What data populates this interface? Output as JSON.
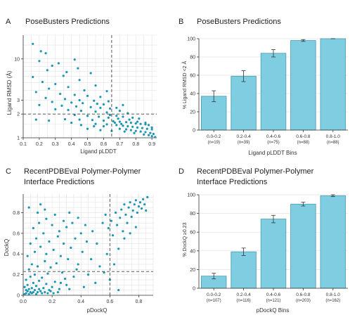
{
  "colors": {
    "marker": "#1b97b3",
    "bar": "#7ecde0",
    "bar_edge": "#4a9bb2",
    "axis": "#333333",
    "grid": "#e3e3e3",
    "guide": "#444444"
  },
  "panels": [
    {
      "letter": "A",
      "title": [
        "PoseBusters Predictions"
      ]
    },
    {
      "letter": "B",
      "title": [
        "PoseBusters Predictions"
      ]
    },
    {
      "letter": "C",
      "title": [
        "RecentPDBEval Polymer-Polymer",
        "Interface Predictions"
      ]
    },
    {
      "letter": "D",
      "title": [
        "RecentPDBEval Polymer-Polymer",
        "Interface Predictions"
      ]
    }
  ],
  "chart_data": [
    {
      "type": "scatter",
      "title": "PoseBusters Predictions",
      "xlabel": "Ligand pLDDT",
      "ylabel": "Ligand RMSD (Å)",
      "xlim": [
        0.1,
        0.93
      ],
      "ylim": [
        1,
        20
      ],
      "yscale": "log",
      "xticks": [
        "0.1",
        "0.2",
        "0.3",
        "0.4",
        "0.5",
        "0.6",
        "0.7",
        "0.8",
        "0.9"
      ],
      "yticks": [
        "1",
        "2",
        "3",
        "10"
      ],
      "grid": true,
      "reference_lines": {
        "x": 0.65,
        "y": 2
      },
      "points": [
        [
          0.16,
          15.5
        ],
        [
          0.21,
          12.5
        ],
        [
          0.24,
          11.8
        ],
        [
          0.42,
          9.8
        ],
        [
          0.2,
          9.4
        ],
        [
          0.32,
          8.8
        ],
        [
          0.28,
          8.2
        ],
        [
          0.44,
          7.6
        ],
        [
          0.25,
          7.2
        ],
        [
          0.37,
          6.8
        ],
        [
          0.52,
          6.6
        ],
        [
          0.35,
          6.1
        ],
        [
          0.16,
          5.9
        ],
        [
          0.45,
          5.4
        ],
        [
          0.22,
          5.1
        ],
        [
          0.3,
          4.8
        ],
        [
          0.55,
          4.6
        ],
        [
          0.38,
          4.4
        ],
        [
          0.26,
          4.2
        ],
        [
          0.48,
          4.0
        ],
        [
          0.62,
          3.9
        ],
        [
          0.18,
          3.8
        ],
        [
          0.33,
          3.6
        ],
        [
          0.42,
          3.5
        ],
        [
          0.5,
          3.4
        ],
        [
          0.58,
          3.3
        ],
        [
          0.24,
          3.2
        ],
        [
          0.36,
          3.1
        ],
        [
          0.45,
          3.0
        ],
        [
          0.54,
          2.95
        ],
        [
          0.63,
          2.9
        ],
        [
          0.28,
          2.85
        ],
        [
          0.4,
          2.8
        ],
        [
          0.47,
          2.75
        ],
        [
          0.56,
          2.7
        ],
        [
          0.6,
          2.65
        ],
        [
          0.2,
          2.6
        ],
        [
          0.34,
          2.55
        ],
        [
          0.43,
          2.5
        ],
        [
          0.52,
          2.45
        ],
        [
          0.58,
          2.4
        ],
        [
          0.64,
          2.35
        ],
        [
          0.3,
          2.3
        ],
        [
          0.38,
          2.25
        ],
        [
          0.46,
          2.2
        ],
        [
          0.55,
          2.15
        ],
        [
          0.62,
          2.1
        ],
        [
          0.72,
          2.6
        ],
        [
          0.68,
          2.4
        ],
        [
          0.7,
          2.2
        ],
        [
          0.75,
          2.05
        ],
        [
          0.42,
          1.95
        ],
        [
          0.5,
          1.9
        ],
        [
          0.57,
          1.85
        ],
        [
          0.63,
          1.8
        ],
        [
          0.68,
          1.9
        ],
        [
          0.72,
          1.85
        ],
        [
          0.78,
          1.8
        ],
        [
          0.82,
          1.75
        ],
        [
          0.36,
          1.72
        ],
        [
          0.45,
          1.7
        ],
        [
          0.53,
          1.68
        ],
        [
          0.6,
          1.65
        ],
        [
          0.66,
          1.62
        ],
        [
          0.7,
          1.6
        ],
        [
          0.74,
          1.58
        ],
        [
          0.77,
          1.55
        ],
        [
          0.8,
          1.52
        ],
        [
          0.83,
          1.5
        ],
        [
          0.86,
          1.48
        ],
        [
          0.88,
          1.45
        ],
        [
          0.55,
          1.5
        ],
        [
          0.62,
          1.48
        ],
        [
          0.68,
          1.45
        ],
        [
          0.72,
          1.42
        ],
        [
          0.75,
          1.4
        ],
        [
          0.78,
          1.38
        ],
        [
          0.81,
          1.35
        ],
        [
          0.84,
          1.33
        ],
        [
          0.87,
          1.3
        ],
        [
          0.9,
          1.28
        ],
        [
          0.7,
          1.3
        ],
        [
          0.74,
          1.28
        ],
        [
          0.77,
          1.25
        ],
        [
          0.8,
          1.22
        ],
        [
          0.83,
          1.2
        ],
        [
          0.86,
          1.18
        ],
        [
          0.89,
          1.15
        ],
        [
          0.91,
          1.12
        ],
        [
          0.73,
          1.2
        ],
        [
          0.79,
          1.15
        ],
        [
          0.85,
          1.1
        ],
        [
          0.88,
          1.08
        ],
        [
          0.9,
          1.05
        ],
        [
          0.18,
          1.7
        ],
        [
          0.26,
          1.65
        ],
        [
          0.5,
          1.3
        ],
        [
          0.58,
          1.25
        ],
        [
          0.65,
          1.22
        ],
        [
          0.46,
          1.45
        ],
        [
          0.54,
          1.4
        ],
        [
          0.4,
          1.55
        ],
        [
          0.92,
          1.02
        ],
        [
          0.76,
          1.7
        ],
        [
          0.69,
          1.75
        ],
        [
          0.64,
          1.95
        ],
        [
          0.81,
          1.6
        ],
        [
          0.86,
          1.55
        ],
        [
          0.9,
          1.35
        ],
        [
          0.71,
          1.5
        ],
        [
          0.67,
          1.55
        ],
        [
          0.6,
          1.4
        ]
      ]
    },
    {
      "type": "bar",
      "title": "PoseBusters Predictions",
      "xlabel": "Ligand pLDDT Bins",
      "ylabel": "% Ligand RMSD <2 Å",
      "categories": [
        "0.0-0.2",
        "0.2-0.4",
        "0.4-0.6",
        "0.6-0.8",
        "0.8-1.0"
      ],
      "counts": [
        "(n=19)",
        "(n=39)",
        "(n=75)",
        "(n=88)",
        "(n=88)"
      ],
      "values": [
        37,
        59,
        84,
        98,
        100
      ],
      "error_low": [
        31,
        53,
        80,
        97,
        100
      ],
      "error_high": [
        43,
        65,
        88,
        99,
        100
      ],
      "ylim": [
        0,
        100
      ],
      "yticks": [
        "0",
        "20",
        "40",
        "60",
        "80",
        "100"
      ],
      "grid": true
    },
    {
      "type": "scatter",
      "title": "RecentPDBEval Polymer-Polymer Interface Predictions",
      "xlabel": "pDockQ",
      "ylabel": "DockQ",
      "xlim": [
        0,
        0.9
      ],
      "ylim": [
        0,
        0.98
      ],
      "xticks": [
        "0.0",
        "0.2",
        "0.4",
        "0.6",
        "0.8"
      ],
      "yticks": [
        "0",
        "0.2",
        "0.4",
        "0.6",
        "0.8"
      ],
      "grid": true,
      "reference_lines": {
        "x": 0.6,
        "y": 0.23
      },
      "points": [
        [
          0.02,
          0.02
        ],
        [
          0.03,
          0.04
        ],
        [
          0.05,
          0.03
        ],
        [
          0.04,
          0.06
        ],
        [
          0.06,
          0.02
        ],
        [
          0.08,
          0.05
        ],
        [
          0.1,
          0.03
        ],
        [
          0.12,
          0.04
        ],
        [
          0.01,
          0.08
        ],
        [
          0.03,
          0.1
        ],
        [
          0.07,
          0.12
        ],
        [
          0.09,
          0.09
        ],
        [
          0.11,
          0.14
        ],
        [
          0.14,
          0.07
        ],
        [
          0.16,
          0.11
        ],
        [
          0.18,
          0.05
        ],
        [
          0.02,
          0.15
        ],
        [
          0.05,
          0.18
        ],
        [
          0.08,
          0.2
        ],
        [
          0.13,
          0.17
        ],
        [
          0.17,
          0.21
        ],
        [
          0.2,
          0.08
        ],
        [
          0.22,
          0.13
        ],
        [
          0.25,
          0.06
        ],
        [
          0.04,
          0.25
        ],
        [
          0.06,
          0.3
        ],
        [
          0.1,
          0.28
        ],
        [
          0.15,
          0.33
        ],
        [
          0.19,
          0.27
        ],
        [
          0.23,
          0.31
        ],
        [
          0.27,
          0.22
        ],
        [
          0.3,
          0.1
        ],
        [
          0.03,
          0.38
        ],
        [
          0.08,
          0.42
        ],
        [
          0.12,
          0.47
        ],
        [
          0.16,
          0.4
        ],
        [
          0.21,
          0.44
        ],
        [
          0.26,
          0.38
        ],
        [
          0.31,
          0.35
        ],
        [
          0.35,
          0.18
        ],
        [
          0.05,
          0.5
        ],
        [
          0.09,
          0.55
        ],
        [
          0.14,
          0.6
        ],
        [
          0.18,
          0.52
        ],
        [
          0.24,
          0.57
        ],
        [
          0.28,
          0.5
        ],
        [
          0.33,
          0.46
        ],
        [
          0.38,
          0.3
        ],
        [
          0.07,
          0.65
        ],
        [
          0.11,
          0.7
        ],
        [
          0.16,
          0.74
        ],
        [
          0.2,
          0.68
        ],
        [
          0.25,
          0.62
        ],
        [
          0.3,
          0.66
        ],
        [
          0.36,
          0.55
        ],
        [
          0.41,
          0.42
        ],
        [
          0.1,
          0.8
        ],
        [
          0.15,
          0.83
        ],
        [
          0.22,
          0.78
        ],
        [
          0.28,
          0.72
        ],
        [
          0.34,
          0.7
        ],
        [
          0.4,
          0.6
        ],
        [
          0.44,
          0.52
        ],
        [
          0.47,
          0.35
        ],
        [
          0.04,
          0.85
        ],
        [
          0.12,
          0.88
        ],
        [
          0.32,
          0.8
        ],
        [
          0.38,
          0.75
        ],
        [
          0.43,
          0.68
        ],
        [
          0.48,
          0.62
        ],
        [
          0.51,
          0.5
        ],
        [
          0.53,
          0.28
        ],
        [
          0.55,
          0.7
        ],
        [
          0.57,
          0.78
        ],
        [
          0.59,
          0.65
        ],
        [
          0.61,
          0.72
        ],
        [
          0.62,
          0.58
        ],
        [
          0.64,
          0.8
        ],
        [
          0.65,
          0.68
        ],
        [
          0.67,
          0.75
        ],
        [
          0.68,
          0.83
        ],
        [
          0.69,
          0.62
        ],
        [
          0.7,
          0.88
        ],
        [
          0.71,
          0.78
        ],
        [
          0.72,
          0.7
        ],
        [
          0.73,
          0.85
        ],
        [
          0.74,
          0.9
        ],
        [
          0.75,
          0.76
        ],
        [
          0.76,
          0.82
        ],
        [
          0.77,
          0.88
        ],
        [
          0.78,
          0.92
        ],
        [
          0.79,
          0.8
        ],
        [
          0.8,
          0.86
        ],
        [
          0.81,
          0.9
        ],
        [
          0.82,
          0.84
        ],
        [
          0.83,
          0.93
        ],
        [
          0.84,
          0.88
        ],
        [
          0.85,
          0.82
        ],
        [
          0.86,
          0.95
        ],
        [
          0.66,
          0.45
        ],
        [
          0.7,
          0.55
        ],
        [
          0.74,
          0.6
        ],
        [
          0.78,
          0.66
        ],
        [
          0.58,
          0.4
        ],
        [
          0.6,
          0.15
        ],
        [
          0.63,
          0.3
        ],
        [
          0.66,
          0.05
        ],
        [
          0.56,
          0.22
        ],
        [
          0.5,
          0.12
        ],
        [
          0.45,
          0.2
        ],
        [
          0.42,
          0.08
        ],
        [
          0.37,
          0.25
        ],
        [
          0.01,
          0.01
        ],
        [
          0.02,
          0.05
        ],
        [
          0.04,
          0.01
        ],
        [
          0.06,
          0.07
        ],
        [
          0.07,
          0.03
        ],
        [
          0.09,
          0.01
        ],
        [
          0.11,
          0.06
        ],
        [
          0.13,
          0.02
        ],
        [
          0.15,
          0.03
        ],
        [
          0.17,
          0.02
        ],
        [
          0.19,
          0.04
        ],
        [
          0.21,
          0.02
        ],
        [
          0.24,
          0.03
        ],
        [
          0.26,
          0.12
        ],
        [
          0.29,
          0.16
        ],
        [
          0.32,
          0.06
        ]
      ]
    },
    {
      "type": "bar",
      "title": "RecentPDBEval Polymer-Polymer Interface Predictions",
      "xlabel": "pDockQ Bins",
      "ylabel": "% DockQ ≥0.23",
      "categories": [
        "0.0-0.2",
        "0.2-0.4",
        "0.4-0.6",
        "0.6-0.8",
        "0.8-1.0"
      ],
      "counts": [
        "(n=107)",
        "(n=116)",
        "(n=121)",
        "(n=203)",
        "(n=162)"
      ],
      "values": [
        13,
        39,
        74,
        90,
        99
      ],
      "error_low": [
        10,
        35,
        70,
        88,
        98
      ],
      "error_high": [
        16,
        43,
        78,
        92,
        100
      ],
      "ylim": [
        0,
        100
      ],
      "yticks": [
        "0",
        "20",
        "40",
        "60",
        "80",
        "100"
      ],
      "grid": true
    }
  ]
}
